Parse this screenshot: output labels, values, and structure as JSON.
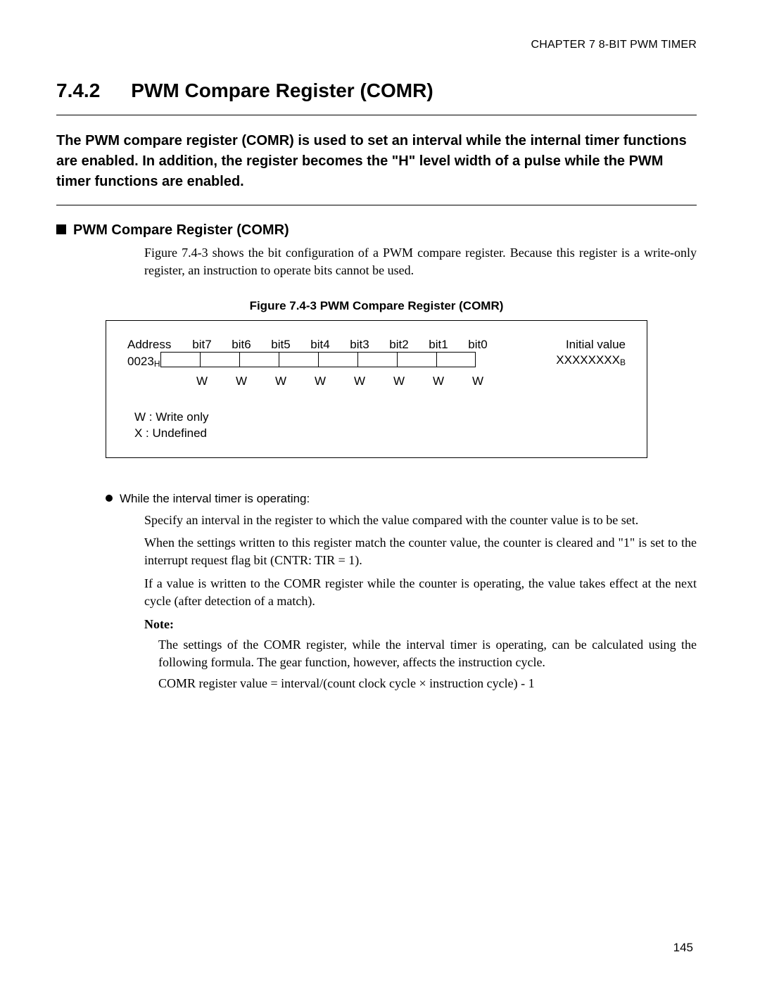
{
  "header": {
    "running": "CHAPTER 7  8-BIT PWM TIMER",
    "section_number": "7.4.2",
    "section_title": "PWM Compare Register (COMR)"
  },
  "intro": "The PWM compare register (COMR) is used to set an interval while the internal timer functions are enabled. In addition, the register becomes the \"H\" level width of a pulse while the PWM timer functions are enabled.",
  "subhead": "PWM Compare Register (COMR)",
  "desc1": "Figure 7.4-3 shows the bit configuration of a PWM compare register. Because this register is a write-only register, an instruction to operate bits cannot be used.",
  "figure": {
    "caption": "Figure 7.4-3  PWM Compare Register (COMR)",
    "address_label": "Address",
    "address_value": "0023",
    "bits": [
      "bit7",
      "bit6",
      "bit5",
      "bit4",
      "bit3",
      "bit2",
      "bit1",
      "bit0"
    ],
    "rw": [
      "W",
      "W",
      "W",
      "W",
      "W",
      "W",
      "W",
      "W"
    ],
    "initial_label": "Initial value",
    "initial_value": "XXXXXXXX",
    "legend_w": "W  :  Write only",
    "legend_x": "X  :  Undefined"
  },
  "bullet": "While the interval timer is operating:",
  "para1": "Specify an interval in the register to which the value compared with the counter value is to be set.",
  "para2": "When the settings written to this register match the counter value, the counter is cleared and \"1\" is set to the interrupt request flag bit (CNTR: TIR = 1).",
  "para3": "If a value is written to the COMR register while the counter is operating, the value takes effect at the next cycle (after detection of a match).",
  "note_label": "Note:",
  "note1": "The settings of the COMR register, while the interval timer is operating, can be calculated using the following formula. The gear function, however, affects the instruction cycle.",
  "formula": "COMR register value = interval/(count clock cycle × instruction cycle) - 1",
  "page_number": "145"
}
